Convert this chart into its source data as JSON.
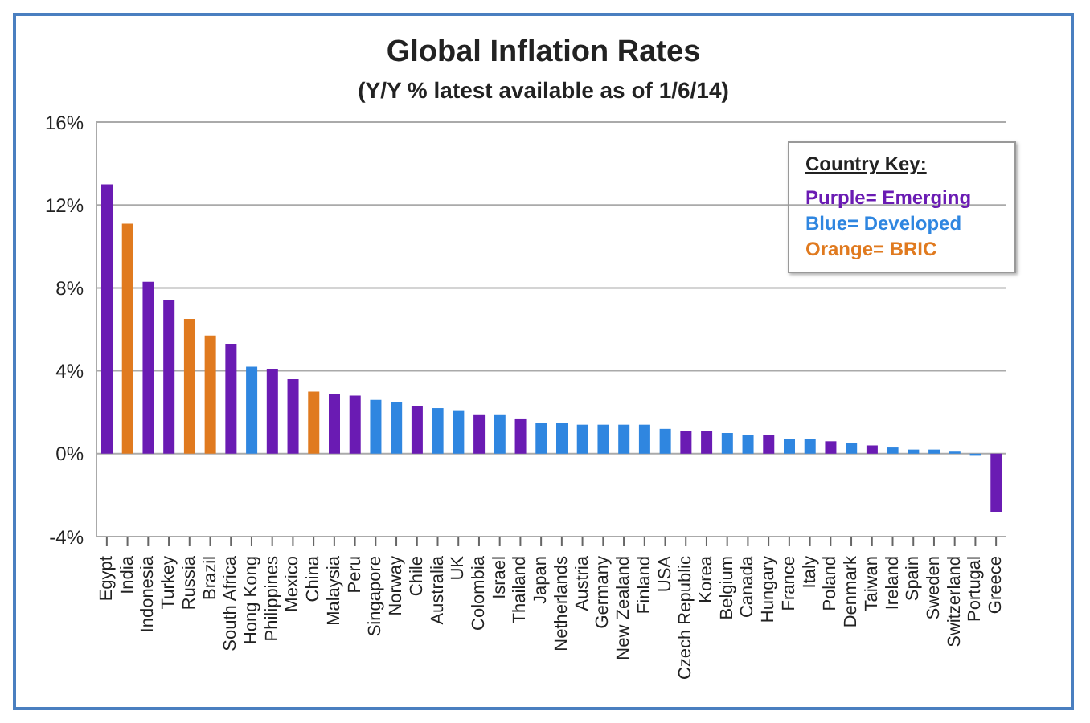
{
  "chart_data": {
    "type": "bar",
    "title": "Global Inflation Rates",
    "subtitle": "(Y/Y % latest available as of 1/6/14)",
    "categories": [
      "Egypt",
      "India",
      "Indonesia",
      "Turkey",
      "Russia",
      "Brazil",
      "South Africa",
      "Hong Kong",
      "Philippines",
      "Mexico",
      "China",
      "Malaysia",
      "Peru",
      "Singapore",
      "Norway",
      "Chile",
      "Australia",
      "UK",
      "Colombia",
      "Israel",
      "Thailand",
      "Japan",
      "Netherlands",
      "Austria",
      "Germany",
      "New Zealand",
      "Finland",
      "USA",
      "Czech Republic",
      "Korea",
      "Belgium",
      "Canada",
      "Hungary",
      "France",
      "Italy",
      "Poland",
      "Denmark",
      "Taiwan",
      "Ireland",
      "Spain",
      "Sweden",
      "Switzerland",
      "Portugal",
      "Greece"
    ],
    "stacked": true,
    "series": [
      {
        "name": "Purple= Emerging",
        "color": "#6a1bb3",
        "values": [
          13.0,
          null,
          8.3,
          7.4,
          null,
          null,
          5.3,
          null,
          4.1,
          3.6,
          null,
          2.9,
          2.8,
          null,
          null,
          2.3,
          null,
          null,
          1.9,
          null,
          1.7,
          null,
          null,
          null,
          null,
          null,
          null,
          null,
          1.1,
          1.1,
          null,
          null,
          0.9,
          null,
          null,
          0.6,
          null,
          0.4,
          null,
          null,
          null,
          null,
          null,
          -2.8
        ]
      },
      {
        "name": "Blue= Developed",
        "color": "#2f86e0",
        "values": [
          null,
          null,
          null,
          null,
          null,
          null,
          null,
          4.2,
          null,
          null,
          null,
          null,
          null,
          2.6,
          2.5,
          null,
          2.2,
          2.1,
          null,
          1.9,
          null,
          1.5,
          1.5,
          1.4,
          1.4,
          1.4,
          1.4,
          1.2,
          null,
          null,
          1.0,
          0.9,
          null,
          0.7,
          0.7,
          null,
          0.5,
          null,
          0.3,
          0.2,
          0.2,
          0.1,
          -0.1,
          null
        ]
      },
      {
        "name": "Orange= BRIC",
        "color": "#e07a1f",
        "values": [
          null,
          11.1,
          null,
          null,
          6.5,
          5.7,
          null,
          null,
          null,
          null,
          3.0,
          null,
          null,
          null,
          null,
          null,
          null,
          null,
          null,
          null,
          null,
          null,
          null,
          null,
          null,
          null,
          null,
          null,
          null,
          null,
          null,
          null,
          null,
          null,
          null,
          null,
          null,
          null,
          null,
          null,
          null,
          null,
          null,
          null
        ]
      }
    ],
    "legend": "top right",
    "legend_title": "Country Key:",
    "ylim": [
      -4,
      16
    ],
    "yticks": [
      {
        "value": -4,
        "label": "-4%"
      },
      {
        "value": 0,
        "label": "0%"
      },
      {
        "value": 4,
        "label": "4%"
      },
      {
        "value": 8,
        "label": "8%"
      },
      {
        "value": 12,
        "label": "12%"
      },
      {
        "value": 16,
        "label": "16%"
      }
    ],
    "grid": "y"
  }
}
